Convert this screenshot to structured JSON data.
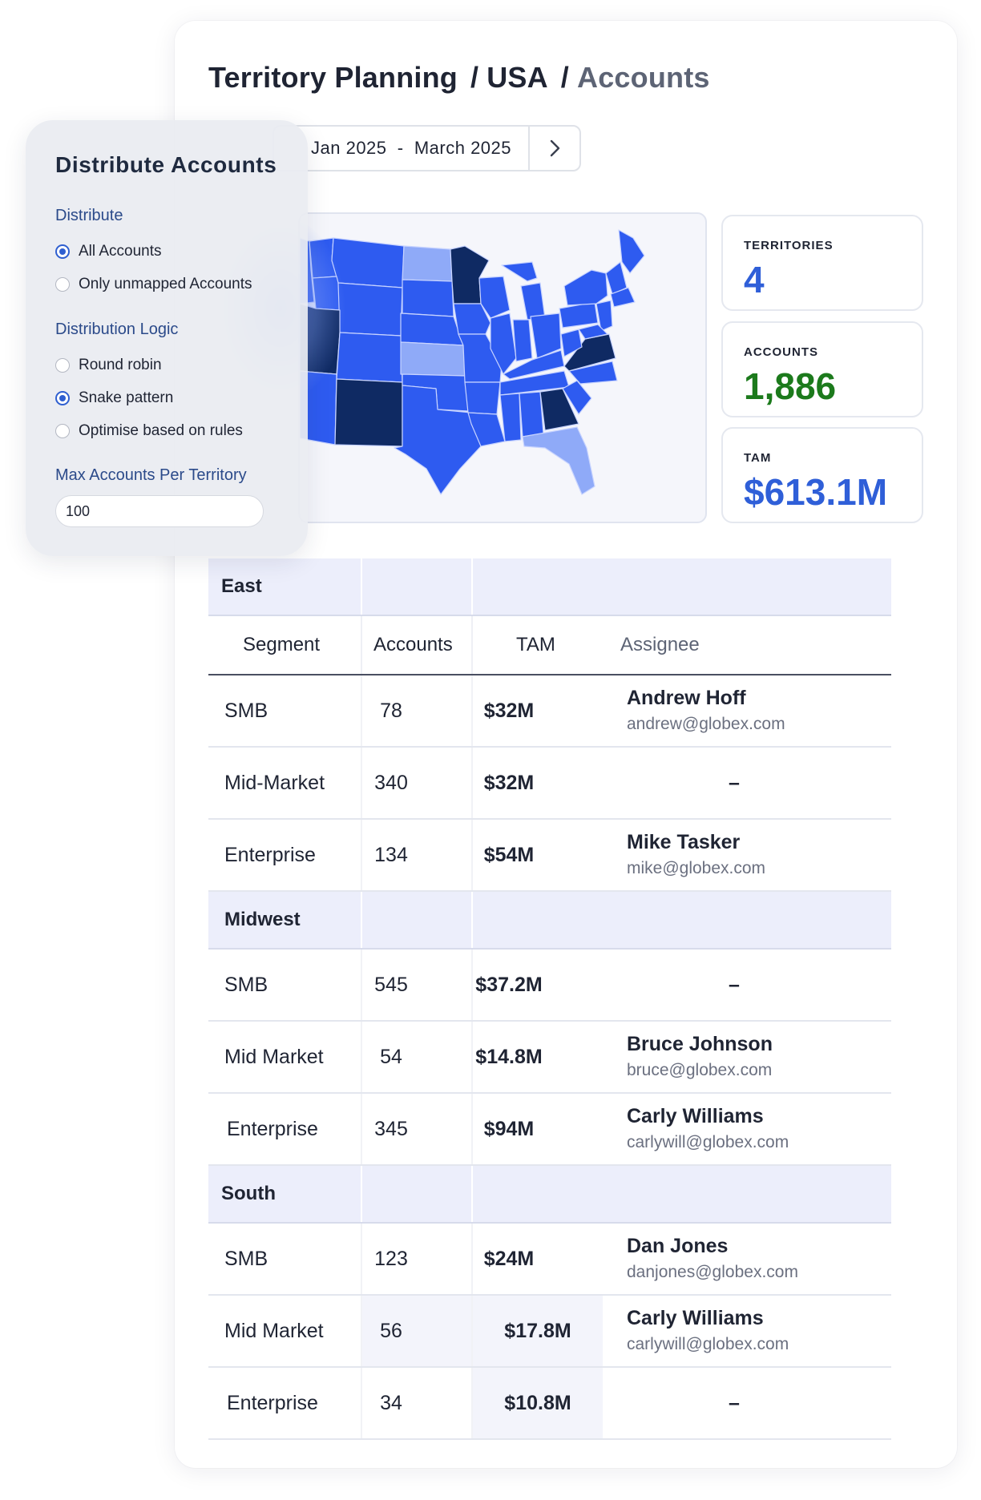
{
  "breadcrumb": {
    "part1": "Territory Planning",
    "sep1": "/",
    "part2": "USA",
    "sep2": "/",
    "part3": "Accounts"
  },
  "date_range": {
    "start": "Jan 2025",
    "dash": "-",
    "end": "March 2025",
    "next_icon": "chevron-right-icon"
  },
  "stats": {
    "territories": {
      "label": "TERRITORIES",
      "value": "4",
      "color": "#2f5fd8"
    },
    "accounts": {
      "label": "ACCOUNTS",
      "value": "1,886",
      "color": "#1c7a1c"
    },
    "tam": {
      "label": "TAM",
      "value": "$613.1M",
      "color": "#2f5fd8"
    }
  },
  "map": {
    "icon": "usa-map",
    "colors": {
      "base": "#2e5bf0",
      "dark": "#0f2a63",
      "light": "#8faaf8"
    }
  },
  "table": {
    "headers": {
      "segment": "Segment",
      "accounts": "Accounts",
      "tam": "TAM",
      "assignee": "Assignee"
    },
    "regions": [
      {
        "name": "East",
        "rows": [
          {
            "segment": "SMB",
            "accounts": "78",
            "tam": "$32M",
            "assignee_name": "Andrew Hoff",
            "assignee_email": "andrew@globex.com"
          },
          {
            "segment": "Mid-Market",
            "accounts": "340",
            "tam": "$32M",
            "assignee_name": "",
            "assignee_email": "",
            "dash": "–"
          },
          {
            "segment": "Enterprise",
            "accounts": "134",
            "tam": "$54M",
            "assignee_name": "Mike Tasker",
            "assignee_email": "mike@globex.com"
          }
        ]
      },
      {
        "name": "Midwest",
        "rows": [
          {
            "segment": "SMB",
            "accounts": "545",
            "tam": "$37.2M",
            "assignee_name": "",
            "assignee_email": "",
            "dash": "–"
          },
          {
            "segment": "Mid Market",
            "accounts": "54",
            "tam": "$14.8M",
            "assignee_name": "Bruce Johnson",
            "assignee_email": "bruce@globex.com"
          },
          {
            "segment": "Enterprise",
            "accounts": "345",
            "tam": "$94M",
            "assignee_name": "Carly Williams",
            "assignee_email": "carlywill@globex.com"
          }
        ]
      },
      {
        "name": "South",
        "rows": [
          {
            "segment": "SMB",
            "accounts": "123",
            "tam": "$24M",
            "assignee_name": "Dan Jones",
            "assignee_email": "danjones@globex.com"
          },
          {
            "segment": "Mid Market",
            "accounts": "56",
            "tam": "$17.8M",
            "assignee_name": "Carly Williams",
            "assignee_email": "carlywill@globex.com"
          },
          {
            "segment": "Enterprise",
            "accounts": "34",
            "tam": "$10.8M",
            "assignee_name": "",
            "assignee_email": "",
            "dash": "–"
          }
        ]
      }
    ]
  },
  "panel": {
    "title": "Distribute Accounts",
    "distribute_label": "Distribute",
    "distribute_options": [
      {
        "label": "All Accounts",
        "selected": true
      },
      {
        "label": "Only unmapped Accounts",
        "selected": false
      }
    ],
    "logic_label": "Distribution Logic",
    "logic_options": [
      {
        "label": "Round robin",
        "selected": false
      },
      {
        "label": "Snake pattern",
        "selected": true
      },
      {
        "label": "Optimise based on rules",
        "selected": false
      }
    ],
    "max_label": "Max Accounts Per Territory",
    "max_value": "100"
  }
}
